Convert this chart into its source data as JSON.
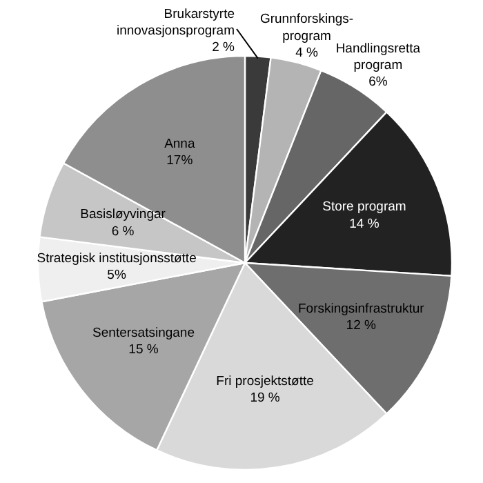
{
  "chart_data": {
    "type": "pie",
    "categories": [
      "Brukarstyrte\ninnovasjonsprogram",
      "Grunnforskings-\nprogram",
      "Handlingsretta\nprogram",
      "Store program",
      "Forskingsinfrastruktur",
      "Fri prosjektstøtte",
      "Sentersatsingane",
      "Strategisk institusjonsstøtte",
      "Basisløyvingar",
      "Anna"
    ],
    "values": [
      2,
      4,
      6,
      14,
      12,
      19,
      15,
      5,
      6,
      17
    ],
    "value_labels": [
      "2 %",
      "4 %",
      "6%",
      "14 %",
      "12 %",
      "19 %",
      "15 %",
      "5%",
      "6 %",
      "17%"
    ],
    "colors": [
      "#3a3a3a",
      "#b4b4b4",
      "#666666",
      "#222222",
      "#6e6e6e",
      "#d9d9d9",
      "#a6a6a6",
      "#efefef",
      "#c6c6c6",
      "#8e8e8e"
    ]
  }
}
